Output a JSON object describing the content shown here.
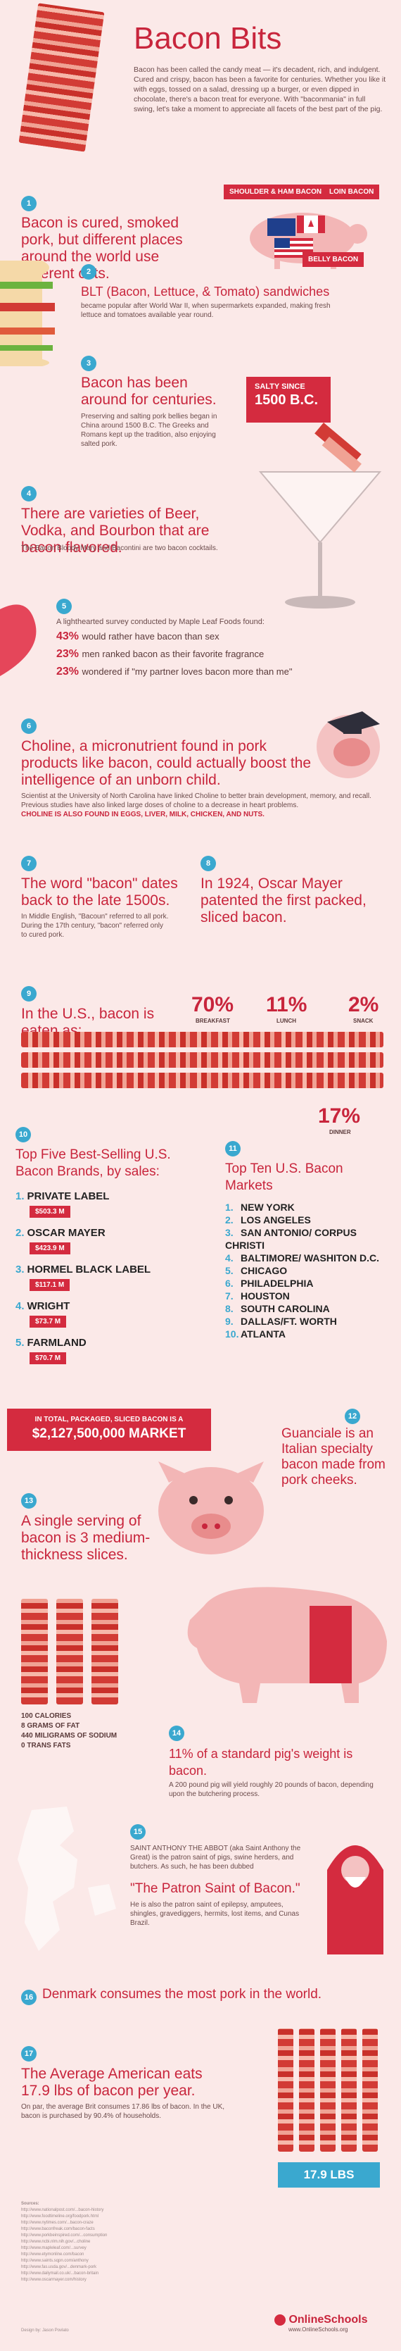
{
  "title": "Bacon Bits",
  "intro": "Bacon has been called the candy meat — it's decadent, rich, and indulgent. Cured and crispy, bacon has been a favorite for centuries. Whether you like it with eggs, tossed on a salad, dressing up a burger, or even dipped in chocolate, there's a bacon treat for everyone. With \"baconmania\" in full swing, let's take a moment to appreciate all facets of the best part of the pig.",
  "s1": {
    "num": "1",
    "head": "Bacon is cured, smoked pork, but different places around the world use different cuts.",
    "tag_shoulder": "SHOULDER & HAM BACON",
    "tag_loin": "LOIN BACON",
    "tag_belly": "BELLY BACON"
  },
  "s2": {
    "num": "2",
    "head": "BLT (Bacon, Lettuce, & Tomato) sandwiches",
    "body": "became popular after World War II, when supermarkets expanded, making fresh lettuce and tomatoes available year round."
  },
  "s3": {
    "num": "3",
    "head": "Bacon has been around for centuries.",
    "body": "Preserving and salting pork bellies began in China around 1500 B.C. The Greeks and Romans kept up the tradition, also enjoying salted pork.",
    "badge_label": "SALTY SINCE",
    "badge_value": "1500 B.C."
  },
  "s4": {
    "num": "4",
    "head": "There are varieties of Beer, Vodka, and Bourbon that are bacon flavored.",
    "body": "The Bacon Bloody Mary and Bacontini are two bacon cocktails."
  },
  "s5": {
    "num": "5",
    "intro": "A lighthearted survey conducted by Maple Leaf Foods found:",
    "p1": "43%",
    "t1": "would rather have bacon than sex",
    "p2": "23%",
    "t2": "men ranked bacon as their favorite fragrance",
    "p3": "23%",
    "t3": "wondered if \"my partner loves bacon more than me\""
  },
  "s6": {
    "num": "6",
    "head": "Choline, a micronutrient found in pork products like bacon, could actually boost the intelligence of an unborn child.",
    "body": "Scientist at the University of North Carolina have linked Choline to better brain development, memory, and recall. Previous studies have also linked large doses of choline to a decrease in heart problems.",
    "body_bold": "CHOLINE IS ALSO FOUND IN EGGS, LIVER, MILK, CHICKEN, AND NUTS."
  },
  "s7": {
    "num": "7",
    "head": "The word \"bacon\" dates back to the late 1500s.",
    "body": "In Middle English, \"Bacoun\" referred to all pork. During the 17th century, \"bacon\" referred only to cured pork."
  },
  "s8": {
    "num": "8",
    "head": "In 1924, Oscar Mayer patented the first packed, sliced bacon."
  },
  "s9": {
    "num": "9",
    "head": "In the U.S., bacon is eaten as:",
    "breakfast_pct": "70%",
    "breakfast": "BREAKFAST",
    "lunch_pct": "11%",
    "lunch": "LUNCH",
    "snack_pct": "2%",
    "snack": "SNACK",
    "dinner_pct": "17%",
    "dinner": "DINNER"
  },
  "s10": {
    "num": "10",
    "head": "Top Five Best-Selling U.S. Bacon Brands, by sales:",
    "brands": [
      {
        "n": "1.",
        "name": "PRIVATE LABEL",
        "val": "$503.3 M"
      },
      {
        "n": "2.",
        "name": "OSCAR MAYER",
        "val": "$423.9 M"
      },
      {
        "n": "3.",
        "name": "HORMEL BLACK LABEL",
        "val": "$117.1 M"
      },
      {
        "n": "4.",
        "name": "WRIGHT",
        "val": "$73.7 M"
      },
      {
        "n": "5.",
        "name": "FARMLAND",
        "val": "$70.7 M"
      }
    ],
    "market_label": "IN TOTAL, PACKAGED, SLICED BACON IS A",
    "market_value": "$2,127,500,000 MARKET"
  },
  "s11": {
    "num": "11",
    "head": "Top Ten U.S. Bacon Markets",
    "markets": [
      {
        "n": "1.",
        "name": "NEW YORK"
      },
      {
        "n": "2.",
        "name": "LOS ANGELES"
      },
      {
        "n": "3.",
        "name": "SAN ANTONIO/ CORPUS CHRISTI"
      },
      {
        "n": "4.",
        "name": "BALTIMORE/ WASHITON D.C."
      },
      {
        "n": "5.",
        "name": "CHICAGO"
      },
      {
        "n": "6.",
        "name": "PHILADELPHIA"
      },
      {
        "n": "7.",
        "name": "HOUSTON"
      },
      {
        "n": "8.",
        "name": "SOUTH CAROLINA"
      },
      {
        "n": "9.",
        "name": "DALLAS/FT. WORTH"
      },
      {
        "n": "10.",
        "name": "ATLANTA"
      }
    ]
  },
  "s12": {
    "num": "12",
    "head": "Guanciale is an Italian specialty bacon made from pork cheeks."
  },
  "s13": {
    "num": "13",
    "head": "A single serving of bacon is 3 medium-thickness slices.",
    "l1": "100 CALORIES",
    "l2": "8 GRAMS OF FAT",
    "l3": "440 MILIGRAMS OF SODIUM",
    "l4": "0 TRANS FATS"
  },
  "s14": {
    "num": "14",
    "head": "11% of a standard pig's weight is bacon.",
    "body": "A 200 pound pig will yield roughly 20 pounds of bacon, depending upon the butchering process."
  },
  "s15": {
    "num": "15",
    "body1": "SAINT ANTHONY THE ABBOT (aka Saint Anthony the Great) is the patron saint of pigs, swine herders, and butchers. As such, he has been dubbed",
    "head": "\"The Patron Saint of Bacon.\"",
    "body2": "He is also the patron saint of epilepsy, amputees, shingles, gravediggers, hermits, lost items, and Cunas Brazil."
  },
  "s16": {
    "num": "16",
    "head": "Denmark consumes the most pork in the world."
  },
  "s17": {
    "num": "17",
    "head": "The Average American eats 17.9 lbs of bacon per year.",
    "body": "On par, the average Brit consumes 17.86 lbs of bacon. In the UK, bacon is purchased by 90.4% of households.",
    "badge": "17.9 LBS"
  },
  "sources_label": "Sources:",
  "sources": [
    "http://www.nationalpost.com/...bacon-history",
    "http://www.foodtimeline.org/foodpork.html",
    "http://www.nytimes.com/...bacon-craze",
    "http://www.baconfreak.com/bacon-facts",
    "http://www.porkbeinspired.com/...consumption",
    "http://www.ncbi.nlm.nih.gov/...choline",
    "http://www.mapleleaf.com/...survey",
    "http://www.etymonline.com/bacon",
    "http://www.saints.sqpn.com/anthony",
    "http://www.fas.usda.gov/...denmark-pork",
    "http://www.dailymail.co.uk/...bacon-britain",
    "http://www.oscarmayer.com/history"
  ],
  "credit": "Design by: Jason Povlato",
  "logo": "OnlineSchools",
  "logo_url": "www.OnlineSchools.org"
}
